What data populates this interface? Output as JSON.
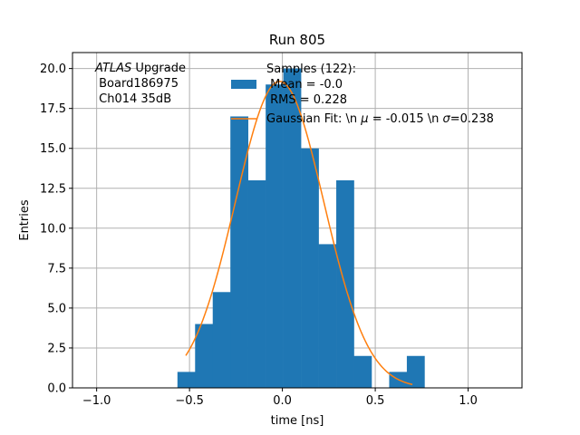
{
  "chart_data": {
    "type": "bar",
    "title": "Run 805",
    "xlabel": "time [ns]",
    "ylabel": "Entries",
    "xlim": [
      -1.13,
      1.29
    ],
    "ylim": [
      0,
      21.0
    ],
    "grid": true,
    "x_ticks": [
      -1.0,
      -0.5,
      0.0,
      0.5,
      1.0
    ],
    "x_tick_labels": [
      "−1.0",
      "−0.5",
      "0.0",
      "0.5",
      "1.0"
    ],
    "y_ticks": [
      0,
      2.5,
      5,
      7.5,
      10,
      12.5,
      15,
      17.5,
      20
    ],
    "y_tick_labels": [
      "0.0",
      "2.5",
      "5.0",
      "7.5",
      "10.0",
      "12.5",
      "15.0",
      "17.5",
      "20.0"
    ],
    "bin_width": 0.095,
    "bin_edges_start": -0.565,
    "bar_values": [
      1,
      4,
      6,
      17,
      13,
      19,
      20,
      15,
      9,
      13,
      2,
      0,
      1,
      2
    ],
    "bar_color": "#1f77b4",
    "fit_color": "#ff7f0e",
    "fit": {
      "amplitude": 19.2,
      "mu": -0.015,
      "sigma": 0.238,
      "x_range": [
        -0.52,
        0.7
      ]
    },
    "annotation_lines": [
      "ATLAS Upgrade",
      " Board186975",
      " Ch014 35dB"
    ],
    "annotation_italic_word": "ATLAS",
    "annotation_rest_first_line": " Upgrade",
    "legend": {
      "placement": "upper-center",
      "hist_label_lines": [
        "Samples (122):",
        " Mean = -0.0",
        " RMS = 0.228"
      ],
      "fit_label_prefix": "Gaussian Fit: \\n ",
      "fit_label_mu": "μ",
      "fit_label_mid": " = -0.015 \\n ",
      "fit_label_sigma": "σ",
      "fit_label_suffix": "=0.238"
    }
  }
}
